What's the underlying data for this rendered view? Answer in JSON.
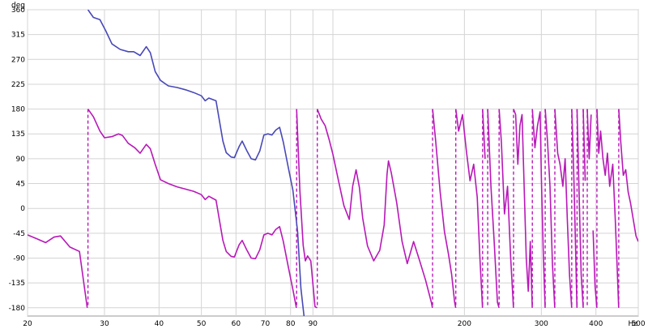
{
  "chart_data": {
    "type": "line",
    "title": "",
    "ylabel": "deg",
    "xlabel": "Hz",
    "x_scale": "log",
    "xlim": [
      20,
      500
    ],
    "ylim": [
      -195,
      360
    ],
    "grid": true,
    "legend": "none",
    "x_ticks": [
      {
        "value": 20,
        "label": "20"
      },
      {
        "value": 30,
        "label": "30"
      },
      {
        "value": 40,
        "label": "40"
      },
      {
        "value": 50,
        "label": "50"
      },
      {
        "value": 60,
        "label": "60"
      },
      {
        "value": 70,
        "label": "70"
      },
      {
        "value": 80,
        "label": "80"
      },
      {
        "value": 90,
        "label": "90"
      },
      {
        "value": 200,
        "label": "200"
      },
      {
        "value": 300,
        "label": "300"
      },
      {
        "value": 400,
        "label": "400"
      },
      {
        "value": 500,
        "label": "500"
      }
    ],
    "x_minor_grid": [
      100
    ],
    "y_ticks": [
      360,
      315,
      270,
      225,
      180,
      135,
      90,
      45,
      0,
      -45,
      -90,
      -135,
      -180
    ],
    "series": [
      {
        "color": "#4848b8",
        "style": "solid",
        "points": [
          [
            27.5,
            360
          ],
          [
            28.3,
            346
          ],
          [
            29.3,
            342
          ],
          [
            30.2,
            322
          ],
          [
            31.2,
            298
          ],
          [
            32.6,
            288
          ],
          [
            34,
            284
          ],
          [
            35,
            284
          ],
          [
            36.2,
            277
          ],
          [
            37.4,
            293
          ],
          [
            38.2,
            282
          ],
          [
            39.2,
            248
          ],
          [
            40.3,
            232
          ],
          [
            42,
            222
          ],
          [
            44,
            219
          ],
          [
            46,
            215
          ],
          [
            48,
            210
          ],
          [
            50,
            204
          ],
          [
            51,
            195
          ],
          [
            52,
            200
          ],
          [
            54,
            195
          ],
          [
            56,
            122
          ],
          [
            57,
            101
          ],
          [
            58.5,
            93
          ],
          [
            59.5,
            92
          ],
          [
            61,
            112
          ],
          [
            62,
            122
          ],
          [
            63.5,
            105
          ],
          [
            65,
            90
          ],
          [
            66.5,
            88
          ],
          [
            68,
            104
          ],
          [
            69.5,
            133
          ],
          [
            71,
            135
          ],
          [
            72.5,
            133
          ],
          [
            74,
            142
          ],
          [
            75.5,
            147
          ],
          [
            77,
            120
          ],
          [
            79,
            75
          ],
          [
            81,
            33
          ],
          [
            83,
            -42
          ],
          [
            84.5,
            -145
          ],
          [
            86,
            -200
          ]
        ]
      },
      {
        "color": "#b818b8",
        "style": "solid",
        "points": [
          [
            20,
            -48
          ],
          [
            21,
            -55
          ],
          [
            22,
            -62
          ],
          [
            23,
            -52
          ],
          [
            23.8,
            -50
          ],
          [
            25,
            -70
          ],
          [
            26.3,
            -78
          ],
          [
            27.4,
            -180
          ],
          [
            27.5,
            180
          ],
          [
            28.3,
            166
          ],
          [
            29.3,
            140
          ],
          [
            30,
            128
          ],
          [
            31.2,
            130
          ],
          [
            32.3,
            135
          ],
          [
            33,
            132
          ],
          [
            34,
            118
          ],
          [
            35.2,
            110
          ],
          [
            36.2,
            100
          ],
          [
            37.4,
            116
          ],
          [
            38.2,
            108
          ],
          [
            39.2,
            80
          ],
          [
            40.3,
            52
          ],
          [
            42,
            45
          ],
          [
            44,
            39
          ],
          [
            46,
            35
          ],
          [
            48,
            31
          ],
          [
            50,
            25
          ],
          [
            51,
            16
          ],
          [
            52,
            22
          ],
          [
            54,
            15
          ],
          [
            56,
            -58
          ],
          [
            57,
            -78
          ],
          [
            58.5,
            -87
          ],
          [
            59.5,
            -88
          ],
          [
            61,
            -66
          ],
          [
            62,
            -58
          ],
          [
            63.5,
            -75
          ],
          [
            65,
            -90
          ],
          [
            66.5,
            -91
          ],
          [
            68,
            -75
          ],
          [
            69.5,
            -48
          ],
          [
            71,
            -45
          ],
          [
            72.5,
            -48
          ],
          [
            74,
            -38
          ],
          [
            75.5,
            -33
          ],
          [
            77,
            -60
          ],
          [
            79,
            -105
          ],
          [
            81,
            -147
          ],
          [
            82.5,
            -180
          ],
          [
            82.6,
            180
          ],
          [
            84,
            33
          ],
          [
            85.5,
            -67
          ],
          [
            86.5,
            -95
          ],
          [
            87.5,
            -86
          ],
          [
            89,
            -95
          ],
          [
            91,
            -178
          ],
          [
            92,
            -180
          ],
          [
            92.1,
            180
          ],
          [
            94,
            162
          ],
          [
            96,
            150
          ],
          [
            98,
            125
          ],
          [
            100,
            98
          ],
          [
            103,
            50
          ],
          [
            106,
            5
          ],
          [
            109,
            -20
          ],
          [
            111,
            40
          ],
          [
            113,
            70
          ],
          [
            115,
            38
          ],
          [
            117,
            -18
          ],
          [
            120,
            -68
          ],
          [
            124,
            -95
          ],
          [
            128,
            -76
          ],
          [
            131,
            -30
          ],
          [
            133,
            62
          ],
          [
            134,
            86
          ],
          [
            136,
            65
          ],
          [
            140,
            10
          ],
          [
            144,
            -60
          ],
          [
            148,
            -100
          ],
          [
            153,
            -60
          ],
          [
            158,
            -95
          ],
          [
            163,
            -130
          ],
          [
            168,
            -170
          ],
          [
            169,
            -180
          ],
          [
            169.1,
            180
          ],
          [
            172,
            120
          ],
          [
            176,
            30
          ],
          [
            180,
            -42
          ],
          [
            184,
            -84
          ],
          [
            187,
            -120
          ],
          [
            190,
            -170
          ],
          [
            191,
            -180
          ],
          [
            191.1,
            180
          ],
          [
            194,
            140
          ],
          [
            198,
            170
          ],
          [
            202,
            105
          ],
          [
            206,
            50
          ],
          [
            210,
            80
          ],
          [
            214,
            20
          ],
          [
            217,
            -90
          ],
          [
            220,
            -180
          ],
          [
            220.1,
            180
          ],
          [
            223,
            90
          ],
          [
            226,
            -180
          ],
          [
            226.1,
            180
          ],
          [
            230,
            40
          ],
          [
            234,
            -60
          ],
          [
            238,
            -170
          ],
          [
            240,
            -180
          ],
          [
            240.1,
            180
          ],
          [
            243,
            120
          ],
          [
            247,
            -10
          ],
          [
            251,
            40
          ],
          [
            255,
            -85
          ],
          [
            259,
            -180
          ],
          [
            259.1,
            180
          ],
          [
            262,
            170
          ],
          [
            265,
            80
          ],
          [
            268,
            150
          ],
          [
            271,
            170
          ],
          [
            274,
            40
          ],
          [
            277,
            -90
          ],
          [
            280,
            -150
          ],
          [
            283,
            -60
          ],
          [
            286,
            -180
          ],
          [
            286.1,
            180
          ],
          [
            290,
            110
          ],
          [
            294,
            150
          ],
          [
            298,
            175
          ],
          [
            300,
            60
          ],
          [
            303,
            -80
          ],
          [
            306,
            -180
          ],
          [
            306.1,
            180
          ],
          [
            310,
            120
          ],
          [
            314,
            40
          ],
          [
            318,
            -100
          ],
          [
            322,
            -180
          ],
          [
            322.1,
            180
          ],
          [
            327,
            100
          ],
          [
            331,
            80
          ],
          [
            336,
            40
          ],
          [
            340,
            90
          ],
          [
            344,
            -20
          ],
          [
            348,
            -120
          ],
          [
            352,
            -180
          ],
          [
            352.1,
            180
          ],
          [
            356,
            60
          ],
          [
            359,
            -60
          ],
          [
            362,
            -180
          ],
          [
            362.1,
            180
          ],
          [
            366,
            30
          ],
          [
            370,
            -120
          ],
          [
            374,
            -180
          ],
          [
            374.1,
            180
          ],
          [
            378,
            50
          ],
          [
            382,
            -180
          ],
          [
            382.1,
            180
          ],
          [
            386,
            90
          ],
          [
            390,
            170
          ],
          [
            394,
            -40
          ],
          [
            398,
            -140
          ],
          [
            402,
            -180
          ],
          [
            402.1,
            180
          ],
          [
            406,
            100
          ],
          [
            410,
            140
          ],
          [
            415,
            90
          ],
          [
            420,
            60
          ],
          [
            425,
            100
          ],
          [
            430,
            40
          ],
          [
            437,
            80
          ],
          [
            443,
            -20
          ],
          [
            449,
            -140
          ],
          [
            451,
            -180
          ],
          [
            451.1,
            180
          ],
          [
            456,
            120
          ],
          [
            462,
            60
          ],
          [
            468,
            70
          ],
          [
            474,
            30
          ],
          [
            480,
            10
          ],
          [
            487,
            -20
          ],
          [
            494,
            -50
          ],
          [
            500,
            -60
          ]
        ],
        "phase_wraps": [
          {
            "x": 27.5,
            "from": -180,
            "to": 180
          },
          {
            "x": 82.6,
            "from": -180,
            "to": 180
          },
          {
            "x": 92.1,
            "from": -180,
            "to": 180
          },
          {
            "x": 169.1,
            "from": -180,
            "to": 180
          },
          {
            "x": 191.1,
            "from": -180,
            "to": 180
          },
          {
            "x": 220.1,
            "from": -180,
            "to": 180
          },
          {
            "x": 226.1,
            "from": -180,
            "to": 180
          },
          {
            "x": 240.1,
            "from": -180,
            "to": 180
          },
          {
            "x": 259.1,
            "from": -180,
            "to": 180
          },
          {
            "x": 286.1,
            "from": -180,
            "to": 180
          },
          {
            "x": 306.1,
            "from": -180,
            "to": 180
          },
          {
            "x": 322.1,
            "from": -180,
            "to": 180
          },
          {
            "x": 352.1,
            "from": -180,
            "to": 180
          },
          {
            "x": 362.1,
            "from": -180,
            "to": 180
          },
          {
            "x": 374.1,
            "from": -180,
            "to": 180
          },
          {
            "x": 382.1,
            "from": -180,
            "to": 180
          },
          {
            "x": 402.1,
            "from": -180,
            "to": 180
          },
          {
            "x": 451.1,
            "from": -180,
            "to": 180
          }
        ]
      }
    ]
  }
}
